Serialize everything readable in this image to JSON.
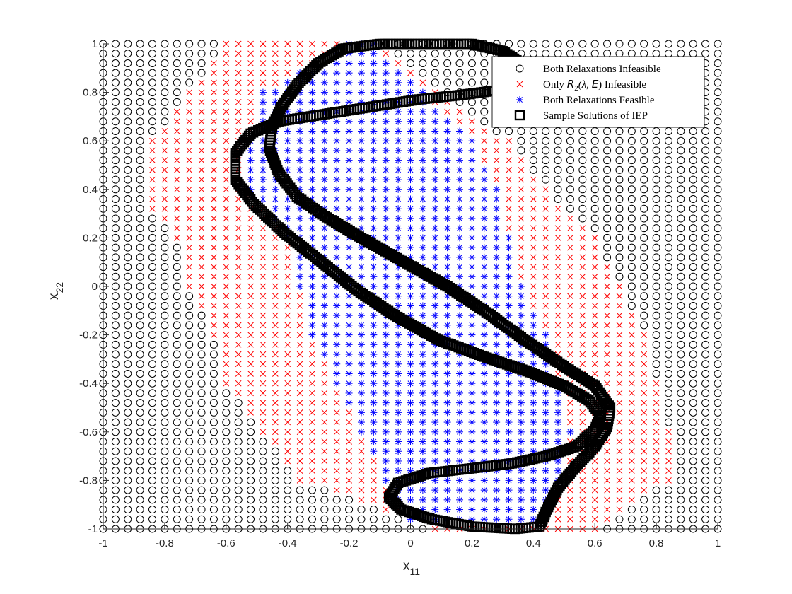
{
  "chart_data": {
    "type": "scatter",
    "title": "",
    "xlabel": "x",
    "xlabel_sub": "11",
    "ylabel": "x",
    "ylabel_sub": "22",
    "xlim": [
      -1,
      1
    ],
    "ylim": [
      -1,
      1
    ],
    "xticks": [
      -1,
      -0.8,
      -0.6,
      -0.4,
      -0.2,
      0,
      0.2,
      0.4,
      0.6,
      0.8,
      1
    ],
    "yticks": [
      -1,
      -0.8,
      -0.6,
      -0.4,
      -0.2,
      0,
      0.2,
      0.4,
      0.6,
      0.8,
      1
    ],
    "xtick_labels": [
      "-1",
      "-0.8",
      "-0.6",
      "-0.4",
      "-0.2",
      "0",
      "0.2",
      "0.4",
      "0.6",
      "0.8",
      "1"
    ],
    "ytick_labels": [
      "-1",
      "-0.8",
      "-0.6",
      "-0.4",
      "-0.2",
      "0",
      "0.2",
      "0.4",
      "0.6",
      "0.8",
      "1"
    ],
    "grid": false,
    "grid_step": 0.04,
    "legend_position": "top-right",
    "legend": [
      {
        "label": "Both Relaxations Infeasible",
        "marker": "circle",
        "color": "#000000"
      },
      {
        "label": "Only R2(λ, E) Infeasible",
        "label_parts": [
          "Only ",
          "R",
          "2",
          "(λ, ",
          "E",
          ") Infeasible"
        ],
        "marker": "x",
        "color": "#ff0000"
      },
      {
        "label": "Both Relaxations Feasible",
        "marker": "asterisk",
        "color": "#0000ff"
      },
      {
        "label": "Sample Solutions of IEP",
        "marker": "square",
        "color": "#000000"
      }
    ],
    "series": [
      {
        "name": "Only R2(λ, E) Infeasible",
        "marker": "x",
        "color": "#ff0000",
        "rows": [
          {
            "y": 1.0,
            "x_ranges": [
              [
                -0.6,
                -0.12
              ]
            ]
          },
          {
            "y": 0.8,
            "x_ranges": [
              [
                -0.72,
                0.08
              ]
            ]
          },
          {
            "y": 0.6,
            "x_ranges": [
              [
                -0.84,
                0.32
              ]
            ]
          },
          {
            "y": 0.4,
            "x_ranges": [
              [
                -0.84,
                0.44
              ]
            ]
          },
          {
            "y": 0.3,
            "x_ranges": [
              [
                -0.84,
                0.52
              ]
            ]
          },
          {
            "y": 0.2,
            "x_ranges": [
              [
                -0.76,
                0.6
              ]
            ]
          },
          {
            "y": 0.0,
            "x_ranges": [
              [
                -0.72,
                0.68
              ]
            ]
          },
          {
            "y": -0.2,
            "x_ranges": [
              [
                -0.64,
                0.76
              ]
            ]
          },
          {
            "y": -0.4,
            "x_ranges": [
              [
                -0.6,
                0.8
              ]
            ]
          },
          {
            "y": -0.6,
            "x_ranges": [
              [
                -0.48,
                0.84
              ]
            ]
          },
          {
            "y": -0.8,
            "x_ranges": [
              [
                -0.36,
                0.84
              ]
            ]
          },
          {
            "y": -1.0,
            "x_ranges": [
              [
                0.08,
                0.6
              ]
            ]
          }
        ]
      },
      {
        "name": "Both Relaxations Feasible",
        "marker": "asterisk",
        "color": "#0000ff",
        "rows": [
          {
            "y": 1.0,
            "x_ranges": [
              [
                -0.2,
                -0.12
              ]
            ]
          },
          {
            "y": 0.8,
            "x_ranges": [
              [
                -0.48,
                0.04
              ]
            ]
          },
          {
            "y": 0.6,
            "x_ranges": [
              [
                -0.52,
                0.2
              ]
            ]
          },
          {
            "y": 0.4,
            "x_ranges": [
              [
                -0.52,
                0.28
              ]
            ]
          },
          {
            "y": 0.2,
            "x_ranges": [
              [
                -0.4,
                0.32
              ]
            ]
          },
          {
            "y": 0.0,
            "x_ranges": [
              [
                -0.36,
                0.36
              ]
            ]
          },
          {
            "y": -0.2,
            "x_ranges": [
              [
                -0.32,
                0.44
              ]
            ]
          },
          {
            "y": -0.4,
            "x_ranges": [
              [
                -0.24,
                0.48
              ]
            ]
          },
          {
            "y": -0.6,
            "x_ranges": [
              [
                -0.16,
                0.52
              ]
            ]
          },
          {
            "y": -0.8,
            "x_ranges": [
              [
                -0.08,
                0.48
              ]
            ]
          },
          {
            "y": -0.96,
            "x_ranges": [
              [
                0.0,
                0.4
              ]
            ]
          }
        ]
      },
      {
        "name": "Both Relaxations Infeasible",
        "marker": "circle",
        "color": "#000000",
        "note": "all remaining grid points in [-1,1]x[-1,1]"
      },
      {
        "name": "Sample Solutions of IEP",
        "marker": "square",
        "color": "#000000",
        "curves": [
          [
            [
              0.4,
              0.84
            ],
            [
              0.36,
              0.92
            ],
            [
              0.3,
              0.97
            ],
            [
              0.2,
              1.0
            ],
            [
              0.05,
              1.0
            ],
            [
              -0.1,
              1.0
            ],
            [
              -0.22,
              0.98
            ],
            [
              -0.3,
              0.92
            ],
            [
              -0.37,
              0.83
            ],
            [
              -0.42,
              0.74
            ],
            [
              -0.45,
              0.66
            ],
            [
              -0.46,
              0.57
            ],
            [
              -0.43,
              0.47
            ],
            [
              -0.37,
              0.37
            ],
            [
              -0.28,
              0.29
            ],
            [
              -0.16,
              0.2
            ],
            [
              -0.02,
              0.1
            ],
            [
              0.12,
              0.0
            ],
            [
              0.24,
              -0.1
            ],
            [
              0.36,
              -0.21
            ],
            [
              0.5,
              -0.33
            ],
            [
              0.6,
              -0.41
            ],
            [
              0.65,
              -0.5
            ],
            [
              0.64,
              -0.58
            ],
            [
              0.6,
              -0.66
            ],
            [
              0.54,
              -0.74
            ],
            [
              0.48,
              -0.83
            ],
            [
              0.44,
              -0.93
            ],
            [
              0.42,
              -0.99
            ],
            [
              0.34,
              -1.0
            ],
            [
              0.2,
              -0.99
            ],
            [
              0.07,
              -0.96
            ],
            [
              -0.03,
              -0.92
            ],
            [
              -0.07,
              -0.87
            ],
            [
              -0.04,
              -0.81
            ],
            [
              0.06,
              -0.77
            ],
            [
              0.2,
              -0.75
            ],
            [
              0.33,
              -0.73
            ],
            [
              0.44,
              -0.7
            ],
            [
              0.54,
              -0.66
            ],
            [
              0.6,
              -0.59
            ],
            [
              0.62,
              -0.53
            ],
            [
              0.58,
              -0.47
            ],
            [
              0.5,
              -0.41
            ],
            [
              0.38,
              -0.35
            ],
            [
              0.24,
              -0.29
            ],
            [
              0.09,
              -0.22
            ],
            [
              -0.05,
              -0.12
            ],
            [
              -0.17,
              -0.02
            ],
            [
              -0.29,
              0.1
            ],
            [
              -0.41,
              0.22
            ],
            [
              -0.51,
              0.34
            ],
            [
              -0.57,
              0.44
            ],
            [
              -0.57,
              0.55
            ],
            [
              -0.52,
              0.63
            ],
            [
              -0.43,
              0.68
            ],
            [
              -0.28,
              0.71
            ],
            [
              -0.13,
              0.74
            ],
            [
              0.02,
              0.77
            ],
            [
              0.17,
              0.79
            ],
            [
              0.29,
              0.81
            ],
            [
              0.38,
              0.83
            ],
            [
              0.4,
              0.84
            ]
          ]
        ]
      }
    ]
  }
}
